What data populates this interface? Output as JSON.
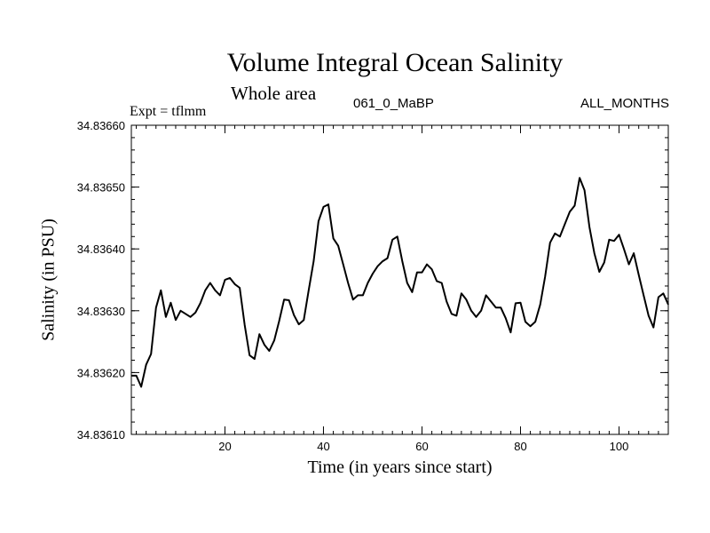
{
  "chart_data": {
    "type": "line",
    "title": "Volume Integral Ocean Salinity",
    "subtitle": "Whole area",
    "annotation_left": "Expt = tflmm",
    "annotation_center": "061_0_MaBP",
    "annotation_right": "ALL_MONTHS",
    "xlabel": "Time (in years since start)",
    "ylabel": "Salinity (in PSU)",
    "xlim": [
      1,
      110
    ],
    "ylim": [
      34.8361,
      34.8366
    ],
    "xticks": [
      20,
      40,
      60,
      80,
      100
    ],
    "yticks": [
      34.8361,
      34.8362,
      34.8363,
      34.8364,
      34.8365,
      34.8366
    ],
    "ytick_labels": [
      "34.83610",
      "34.83620",
      "34.83630",
      "34.83640",
      "34.83650",
      "34.83660"
    ],
    "series": [
      {
        "name": "Salinity",
        "x": [
          1,
          2,
          3,
          4,
          5,
          6,
          7,
          8,
          9,
          10,
          11,
          12,
          13,
          14,
          15,
          16,
          17,
          18,
          19,
          20,
          21,
          22,
          23,
          24,
          25,
          26,
          27,
          28,
          29,
          30,
          31,
          32,
          33,
          34,
          35,
          36,
          37,
          38,
          39,
          40,
          41,
          42,
          43,
          44,
          45,
          46,
          47,
          48,
          49,
          50,
          51,
          52,
          53,
          54,
          55,
          56,
          57,
          58,
          59,
          60,
          61,
          62,
          63,
          64,
          65,
          66,
          67,
          68,
          69,
          70,
          71,
          72,
          73,
          74,
          75,
          76,
          77,
          78,
          79,
          80,
          81,
          82,
          83,
          84,
          85,
          86,
          87,
          88,
          89,
          90,
          91,
          92,
          93,
          94,
          95,
          96,
          97,
          98,
          99,
          100,
          101,
          102,
          103,
          104,
          105,
          106,
          107,
          108,
          109,
          110
        ],
        "y": [
          34.836195,
          34.836195,
          34.836177,
          34.836213,
          34.83623,
          34.836305,
          34.836333,
          34.83629,
          34.836313,
          34.836285,
          34.8363,
          34.836295,
          34.83629,
          34.836297,
          34.836312,
          34.836333,
          34.836345,
          34.836333,
          34.836325,
          34.83635,
          34.836353,
          34.836343,
          34.836337,
          34.836277,
          34.836228,
          34.836222,
          34.836262,
          34.836245,
          34.836235,
          34.836252,
          34.836283,
          34.836318,
          34.836317,
          34.836293,
          34.836278,
          34.836285,
          34.836333,
          34.83638,
          34.836445,
          34.836468,
          34.836472,
          34.836417,
          34.836405,
          34.836375,
          34.836345,
          34.836318,
          34.836325,
          34.836325,
          34.836345,
          34.83636,
          34.836372,
          34.83638,
          34.836385,
          34.836415,
          34.83642,
          34.83638,
          34.836345,
          34.83633,
          34.836362,
          34.836362,
          34.836375,
          34.836367,
          34.836348,
          34.836345,
          34.836315,
          34.836295,
          34.836292,
          34.836328,
          34.836318,
          34.8363,
          34.83629,
          34.8363,
          34.836325,
          34.836315,
          34.836305,
          34.836305,
          34.836288,
          34.836265,
          34.836312,
          34.836313,
          34.836282,
          34.836275,
          34.836282,
          34.83631,
          34.836355,
          34.83641,
          34.836425,
          34.83642,
          34.83644,
          34.83646,
          34.83647,
          34.836515,
          34.836495,
          34.836435,
          34.836393,
          34.836363,
          34.836378,
          34.836415,
          34.836413,
          34.836423,
          34.8364,
          34.836375,
          34.836393,
          34.836358,
          34.836325,
          34.836292,
          34.836273,
          34.836322,
          34.836328,
          34.83631
        ]
      }
    ]
  }
}
